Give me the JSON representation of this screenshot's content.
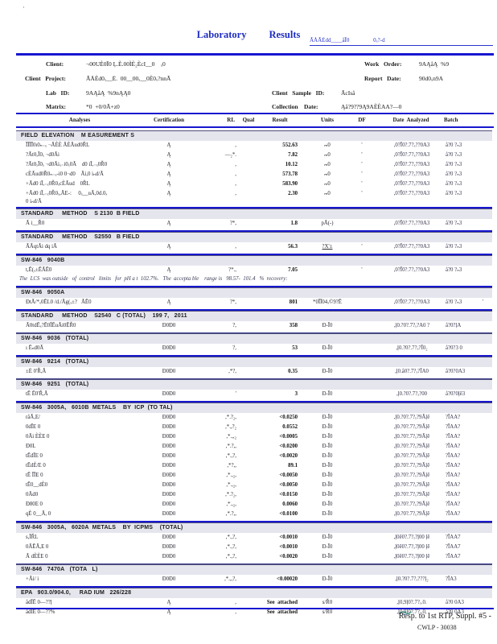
{
  "meta": {
    "stray_mark": "·"
  },
  "header": {
    "title_word1": "Laboratory",
    "title_word2": "Results",
    "logo_text": "ĀÅĀÈdd____åĪ0                 0ₓ?-d"
  },
  "info": {
    "client_label": "Client:",
    "client_value": "¬00UÈ0Ī0 Ļ.È.00ÌÈ₂ÈcI__0    ₓ0",
    "project_label": "Client   Project:",
    "project_value": "ĀÅÈd0ₓ__Ė.  00__00ₓ__0È0ₓ?nnĀ",
    "lab_label": "Lab   ID:",
    "lab_value": "9AĄåĄ  %9nĄĄ0",
    "matrix_label": "Matrix:",
    "matrix_value": "*0  +0/0Ā+z0",
    "work_label": "Work   Order:",
    "work_value": "9AĄåĄ  %9",
    "report_label": "Report   Date:",
    "report_value": "90d0ₓn9A",
    "sample_label": "Client   Sample   ID:",
    "sample_value": "ĀcIså",
    "collection_label": "Collection    Date:",
    "collection_value": "Ąå?9??9Ą9AÈÈAA?—0"
  },
  "table": {
    "columns": [
      "Analyses",
      "Certification",
      "RL",
      "Qual",
      "Result",
      "Units",
      "DF",
      "Date  Analyzed",
      "Batch"
    ],
    "sections": [
      {
        "header": "FIELD  ELEVATION    M EASUREMENT S",
        "rule": "none",
        "rows": [
          {
            "analyte": "ĪĪĪĪ0ı0ₙ₋ₓ ¬ĀÈÈ ĀÈĀud0ŘL",
            "cert": "Ą",
            "rl": ",",
            "result": "552.63",
            "units": "ₘ0",
            "df": "'",
            "date": ",0?Ī0?.7?ₓ??0A3",
            "batch": "å?0 ?ₙ3"
          },
          {
            "analyte": "?Āt0ₓĪ0ₓ ¬d0Āi",
            "cert": "Ą",
            "rl": "—₂*.",
            "result": "7.82",
            "units": "ₘ0",
            "df": "'",
            "date": ",0?Ī0?.7?ₓ??0A3",
            "batch": "å?0 ?ₙ3"
          },
          {
            "analyte": "?Āt0ₓĪ0ₓ ¬d0Āiₓ₋i0ₓ0Ā    d0 iĪ,₋ₓ0Ř0",
            "cert": "Ą",
            "rl": ",",
            "result": "10.12",
            "units": "ₘ0",
            "df": "'",
            "date": ",0?Ī0?.7?ₓ??0A3",
            "batch": "å?0 ?ₙ3"
          },
          {
            "analyte": "cÈĀud0Ř0ₙ₋ₓ-i0 0¬d0    Āi,0 iₙd/Ā",
            "cert": "Ą",
            "rl": ",",
            "result": "573.78",
            "units": "ₘ0",
            "df": "'",
            "date": ",0?Ī0?.7?ₓ??0A3",
            "batch": "å?0 ?ₙ3"
          },
          {
            "analyte": "+Ād0 iĪ,₋ₓ0Ř0ₓcÈĀud    0ŘL",
            "cert": "Ą",
            "rl": ",",
            "result": "583.90",
            "units": "ₘ0",
            "df": "'",
            "date": ",0?Ī0?.7?ₓ??0A3",
            "batch": "å?0 ?ₙ3"
          },
          {
            "analyte": "+Ād0 iĪ,₋ₓ0Ř0ₓ,ĀE-:     0ₓ__uĀ,0d.0ₓ",
            "analyte2": "0 iₙd/Ā",
            "cert": "Ą",
            "rl": ",",
            "result": "2.30",
            "units": "ₘ0",
            "df": "'",
            "date": ",0?Ī0?.7?ₓ??0A3",
            "batch": "å?0 ?ₙ3"
          }
        ]
      },
      {
        "header": "STANDARD     METHOD    S 2130  B FIELD",
        "rule": "blue",
        "rows": [
          {
            "analyte": "Ā i__Ř0",
            "cert": "Ą",
            "rl": "?*,",
            "result": "1.8",
            "units": "pĀ(-)",
            "date": ",0?Ī0?.7?ₓ??0A3",
            "batch": "å?0 ?ₙ3"
          }
        ]
      },
      {
        "header": "STANDARD     METHOD    S2550   B FIELD",
        "rule": "blue",
        "rows": [
          {
            "analyte": "ĀĀqtĀi dq iĀ",
            "cert": "Ą",
            "rl": ",",
            "result": "56.3",
            "units": "?X'±",
            "units_u": true,
            "df": "'",
            "date": ",0?Ī0?.7?ₓ??0A3",
            "batch": "å?0 ?ₙ3"
          }
        ]
      },
      {
        "header": "SW-846   9040B",
        "rule": "blue",
        "note": "The  LCS  was outside   of  control   limits   for  pH a t  102.7%.   The  accepta ble    range is   98.57-  101.4   %  recovery:",
        "rows": [
          {
            "analyte": "t,Ē(ₓ±ĒĀĒ0",
            "cert": "Ą",
            "rl": "?*.,",
            "result": "7.05",
            "units": "",
            "df": "'",
            "date": ",0?Ī0?.7?ₓ??0A3",
            "batch": "å?0 ?ₙ3"
          }
        ]
      },
      {
        "header": "SW-846   9050A",
        "rule": "blue",
        "rows": [
          {
            "analyte": "ĐtĀ/*ₓ0ĒL0 /d./Āg(ₓ±?   ĀĒ0",
            "cert": "Ą",
            "rl": "?*,",
            "result": "801",
            "units": "*0ĪĪ04ₓ©9?Ē",
            "date": ",0?Ī0?.7?ₓ??0A3",
            "batch": "å?0 ?ₙ3",
            "trail": "'"
          }
        ]
      },
      {
        "header": "STANDARD     METHOD    S2540   C (TOTAL)    199 7,   2011",
        "rule": "blue",
        "rows": [
          {
            "analyte": "Ā0tdĒₓ?Ē0ĪĒuĀi0ĒŘ0",
            "cert": "Đ0Đ0",
            "rl": "?,",
            "result": "358",
            "units": "Đ-Ī0",
            "date": ",ļ0.?0?.7?ₓ?A0 ?",
            "batch": "å?0?ļA"
          }
        ]
      },
      {
        "header": "SW-846   9036   (TOTAL)",
        "rule": "thin",
        "rows": [
          {
            "analyte": "ı Ēₙd0Ā",
            "cert": "Đ0Đ0",
            "rl": "?,",
            "result": "53",
            "units": "Đ-Ī0",
            "date": ",ļ0.?0?.7?ₓ?Ī0₂",
            "batch": "å?0?3 0"
          }
        ]
      },
      {
        "header": "SW-846   9214   (TOTAL)",
        "rule": "blue",
        "rows": [
          {
            "analyte": "±Ė 0'Ř,Ā",
            "cert": "Đ0Đ0",
            "rl": ",*?,",
            "result": "0.35",
            "units": "Đ-Ī0",
            "date": ",ļ0.å0?.7?ₓ?ĪA0",
            "batch": "å?0?0A3"
          }
        ]
      },
      {
        "header": "SW-846   9251   (TOTAL)",
        "rule": "thin",
        "rows": [
          {
            "analyte": "tĒ Ē0'Ř,Ā",
            "cert": "Đ0Đ0",
            "rl": "'",
            "result": "3",
            "units": "Đ-Ī0",
            "date": ",ļ0.?0?.7?ₓ?00",
            "batch": "å?0?0ļē3"
          }
        ]
      },
      {
        "header": "SW-846   3005A,   6010B  METALS    BY  ICP  (TO TAL)",
        "rule": "blue",
        "rows": [
          {
            "analyte": "råĀ,E/",
            "cert": "Đ0Đ0",
            "rl": ",*.?₂,",
            "result": "<0.0250",
            "units": "Đ-Ī0",
            "date": ",ļ0.?0?.7?ₓ?9Āļē",
            "batch": "?ĪAA?"
          },
          {
            "analyte": "0dĪE 0",
            "cert": "Đ0Đ0",
            "rl": ",*.,?₂",
            "result": "0.0552",
            "units": "Đ-Ī0",
            "date": ",ļ0.?0?.7?ₓ?9Āļē",
            "batch": "?ĪAA?"
          },
          {
            "analyte": "0Āi ÈÈE 0",
            "cert": "Đ0Đ0",
            "rl": ",*.,,₂",
            "result": "<0.0005",
            "units": "Đ-Ī0",
            "date": ",ļ0.?0?.7?ₓ?9Āļē",
            "batch": "?ĪAA?"
          },
          {
            "analyte": "Đ0L",
            "cert": "Đ0Đ0",
            "rl": ",*.?,,",
            "result": "<0.0200",
            "units": "Đ-Ī0",
            "date": ",ļ0.?0?.7?ₓ?9Āļē",
            "batch": "?ĪAA?"
          },
          {
            "analyte": "tĒdĪE 0",
            "cert": "Đ0Đ0",
            "rl": ",*.,?,",
            "result": "<0.0020",
            "units": "Đ-Ī0",
            "date": ",ļ0.?0?.7?ₓ?9Āļē",
            "batch": "?ĪAA?"
          },
          {
            "analyte": "tĒdÈ/E 0",
            "cert": "Đ0Đ0",
            "rl": ",*?,,",
            "result": "89.1",
            "units": "Đ-Ī0",
            "date": ",ļ0.?0?.7?ₓ?9Āļē",
            "batch": "?ĪAA?"
          },
          {
            "analyte": "tĒ ĪĪE 0",
            "cert": "Đ0Đ0",
            "rl": ",*.,₂,",
            "result": "<0.0050",
            "units": "Đ-Ī0",
            "date": ",ļ0.?0?.7?ₓ?9Āļē",
            "batch": "?ĪAA?"
          },
          {
            "analyte": "tĒ0__dÈ0",
            "cert": "Đ0Đ0",
            "rl": ",*.,₂,",
            "result": "<0.0050",
            "units": "Đ-Ī0",
            "date": ",ļ0.?0?.7?ₓ?9Āļē",
            "batch": "?ĪAA?"
          },
          {
            "analyte": "0Ād0",
            "cert": "Đ0Đ0",
            "rl": ",*.?₂,",
            "result": "<0.0150",
            "units": "Đ-Ī0",
            "date": ",ļ0.?0?.7?ₓ?9Āļē",
            "batch": "?ĪAA?"
          },
          {
            "analyte": "Đ80E 0",
            "cert": "Đ0Đ0",
            "rl": ",*.,₂,",
            "result": "0.0060",
            "units": "Đ-Ī0",
            "date": ",ļ0.?0?.7?ₓ?9Āļē",
            "batch": "?ĪAA?"
          },
          {
            "analyte": "qÈ 0__Ā, 0",
            "cert": "Đ0Đ0",
            "rl": ",*.?,,",
            "result": "<0.0100",
            "units": "Đ-Ī0",
            "date": ",ļ0.?0?.7?ₓ?9Āļē",
            "batch": "?ĪAA?"
          }
        ]
      },
      {
        "header": "SW-846   3005A,   6020A  METALS    BY  ICPMS    (TOTAL)",
        "rule": "blue",
        "rows": [
          {
            "analyte": "s,ĪŘL",
            "cert": "Đ0Đ0",
            "rl": ",*.,?,",
            "result": "<0.0010",
            "units": "Đ-Ī0",
            "date": ",ļ0ē0?.7?ₓ?ļ00 ļē",
            "batch": "?ĪAA7"
          },
          {
            "analyte": "0ĀĒĀ,E 0",
            "cert": "Đ0Đ0",
            "rl": ",*.,?,",
            "result": "<0.0010",
            "units": "Đ-Ī0",
            "date": ",ļ0ē0?.7?ₓ?ļ00 ļē",
            "batch": "?ĪAA7"
          },
          {
            "analyte": "Ā dÈÈE 0",
            "cert": "Đ0Đ0",
            "rl": ",*.,?,",
            "result": "<0.0020",
            "units": "Đ-Ī0",
            "date": ",ļ0ē0?.7?ₓ?ļ00 ļē",
            "batch": "?ĪAA7"
          }
        ]
      },
      {
        "header": "SW-846   7470A   (TOTA   L)",
        "rule": "thin",
        "rows": [
          {
            "analyte": "+Āi/ i",
            "cert": "Đ0Đ0",
            "rl": ",*.,,?,",
            "result": "<0.00020",
            "units": "Đ-Ī0",
            "date": ",ļ0.?0?.7?ₓ???ļ₂",
            "batch": "?ĪA3"
          }
        ]
      },
      {
        "header": "EPA   903.0/904.0,     RAD IUM   226/228",
        "rule": "blue",
        "rows": [
          {
            "analyte": "ådĪĒ 0—??ļ",
            "cert": "Ą",
            "rl": ",",
            "result": "See  attached",
            "units": "s/Ř0",
            "date": ",ļ0,9ļ0?.7?ₓ.0.",
            "batch": "å?0 0A3"
          },
          {
            "analyte": "ådĪĒ 0—??%",
            "cert": "Ą",
            "rl": ",",
            "result": "See  attached",
            "units": "s/Ř0",
            "date": ",ļ0,9ļ0?.7?ₓ,0,",
            "batch": "å?0 0A3"
          }
        ]
      }
    ]
  },
  "footer": {
    "line1": "Resp. to 1st RTP, Suppl. #5 -",
    "line2": "CWLP - 30038"
  }
}
